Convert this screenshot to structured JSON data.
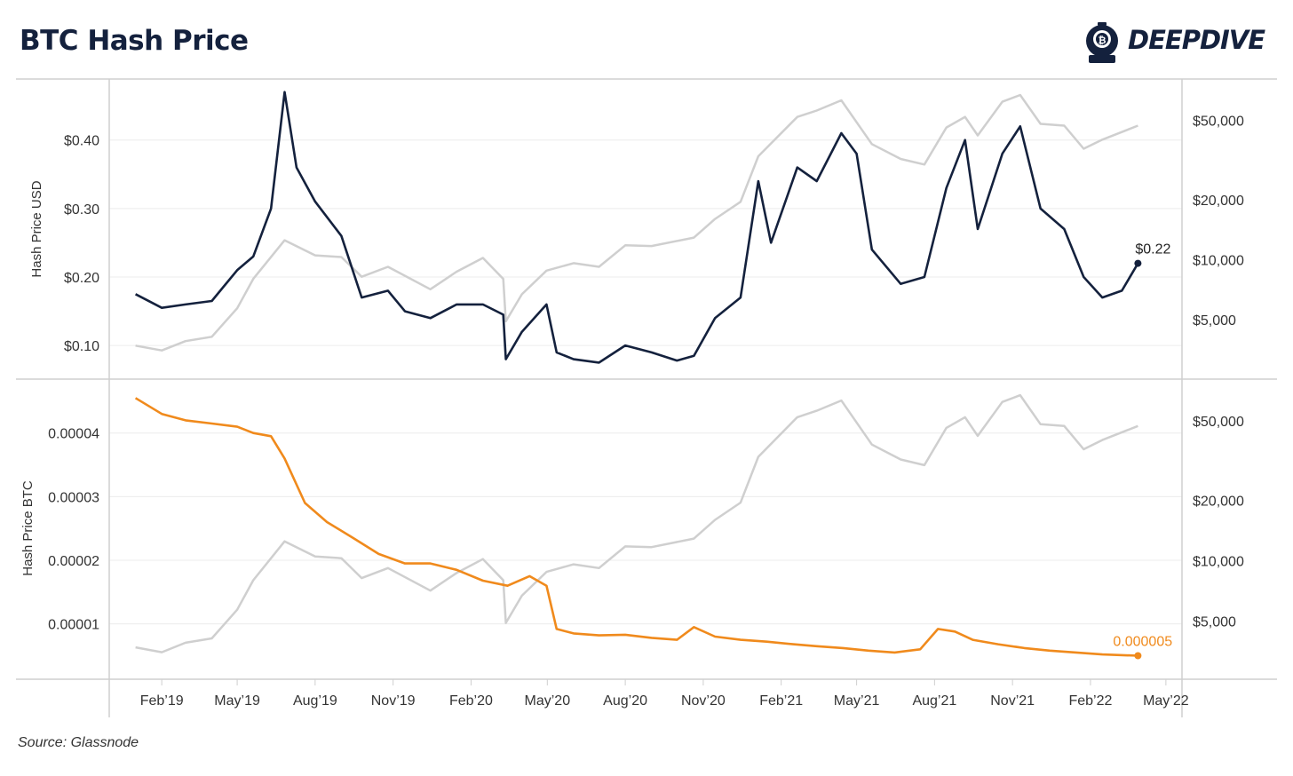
{
  "title": "BTC Hash Price",
  "logo": {
    "text": "DEEPDIVE",
    "icon": "diving-helmet-icon",
    "color": "#14213d"
  },
  "source": "Source: Glassnode",
  "colors": {
    "usd": "#14213d",
    "btc": "#f08a1c",
    "btc_price": "#cfcfcf",
    "grid": "#ececec",
    "axis": "#cfcfcf"
  },
  "chart_data": [
    {
      "type": "line",
      "ylabel": "Hash Price USD",
      "y_ticks": [
        "$0.10",
        "$0.20",
        "$0.30",
        "$0.40"
      ],
      "y_tick_values": [
        0.1,
        0.2,
        0.3,
        0.4
      ],
      "ylim": [
        0.06,
        0.48
      ],
      "y2_scale": "log",
      "y2_ticks": [
        "$5,000",
        "$10,000",
        "$20,000",
        "$50,000"
      ],
      "y2_tick_values": [
        5000,
        10000,
        20000,
        50000
      ],
      "y2lim": [
        2700,
        75000
      ],
      "end_label": "$0.22",
      "series": [
        {
          "name": "Hash Price USD",
          "axis": "left",
          "x": [
            "2019-01-01",
            "2019-02-01",
            "2019-03-01",
            "2019-04-01",
            "2019-05-01",
            "2019-05-20",
            "2019-06-10",
            "2019-06-26",
            "2019-07-10",
            "2019-08-01",
            "2019-09-01",
            "2019-09-25",
            "2019-10-26",
            "2019-11-15",
            "2019-12-15",
            "2020-01-15",
            "2020-02-15",
            "2020-03-10",
            "2020-03-13",
            "2020-04-01",
            "2020-04-30",
            "2020-05-12",
            "2020-06-01",
            "2020-07-01",
            "2020-08-01",
            "2020-09-01",
            "2020-10-01",
            "2020-10-21",
            "2020-11-15",
            "2020-12-15",
            "2021-01-05",
            "2021-01-20",
            "2021-02-20",
            "2021-03-15",
            "2021-04-13",
            "2021-05-01",
            "2021-05-19",
            "2021-06-22",
            "2021-07-20",
            "2021-08-15",
            "2021-09-06",
            "2021-09-21",
            "2021-10-20",
            "2021-11-10",
            "2021-12-04",
            "2022-01-01",
            "2022-01-24",
            "2022-02-15",
            "2022-03-10",
            "2022-03-29"
          ],
          "values": [
            0.175,
            0.155,
            0.16,
            0.165,
            0.21,
            0.23,
            0.3,
            0.47,
            0.36,
            0.31,
            0.26,
            0.17,
            0.18,
            0.15,
            0.14,
            0.16,
            0.16,
            0.145,
            0.08,
            0.12,
            0.16,
            0.09,
            0.08,
            0.075,
            0.1,
            0.09,
            0.078,
            0.085,
            0.14,
            0.17,
            0.34,
            0.25,
            0.36,
            0.34,
            0.41,
            0.38,
            0.24,
            0.19,
            0.2,
            0.33,
            0.4,
            0.27,
            0.38,
            0.42,
            0.3,
            0.27,
            0.2,
            0.17,
            0.18,
            0.22
          ]
        },
        {
          "name": "BTC Price",
          "axis": "right",
          "x": [
            "2019-01-01",
            "2019-02-01",
            "2019-03-01",
            "2019-04-01",
            "2019-05-01",
            "2019-05-20",
            "2019-06-26",
            "2019-08-01",
            "2019-09-01",
            "2019-09-25",
            "2019-10-26",
            "2019-12-15",
            "2020-01-15",
            "2020-02-15",
            "2020-03-10",
            "2020-03-13",
            "2020-04-01",
            "2020-04-30",
            "2020-06-01",
            "2020-07-01",
            "2020-08-01",
            "2020-09-01",
            "2020-10-21",
            "2020-11-15",
            "2020-12-15",
            "2021-01-05",
            "2021-02-20",
            "2021-03-15",
            "2021-04-13",
            "2021-05-19",
            "2021-06-22",
            "2021-07-20",
            "2021-08-15",
            "2021-09-06",
            "2021-09-21",
            "2021-10-20",
            "2021-11-10",
            "2021-12-04",
            "2022-01-01",
            "2022-01-24",
            "2022-02-15",
            "2022-03-29"
          ],
          "values": [
            3700,
            3500,
            3900,
            4100,
            5700,
            8000,
            12500,
            10500,
            10300,
            8200,
            9200,
            7100,
            8700,
            10200,
            8000,
            4900,
            6700,
            8800,
            9600,
            9200,
            11800,
            11700,
            12900,
            16000,
            19500,
            33000,
            52000,
            56000,
            63000,
            38000,
            32000,
            30000,
            46000,
            52000,
            42000,
            62000,
            67000,
            48000,
            47000,
            36000,
            40000,
            47000
          ]
        }
      ]
    },
    {
      "type": "line",
      "ylabel": "Hash Price BTC",
      "y_ticks": [
        "0.00001",
        "0.00002",
        "0.00003",
        "0.00004"
      ],
      "y_tick_values": [
        1e-05,
        2e-05,
        3e-05,
        4e-05
      ],
      "ylim": [
        2e-06,
        4.75e-05
      ],
      "y2_scale": "log",
      "y2_ticks": [
        "$5,000",
        "$10,000",
        "$20,000",
        "$50,000"
      ],
      "y2_tick_values": [
        5000,
        10000,
        20000,
        50000
      ],
      "y2lim": [
        2700,
        75000
      ],
      "end_label": "0.000005",
      "x_ticks": [
        "Feb’19",
        "May’19",
        "Aug’19",
        "Nov’19",
        "Feb’20",
        "May’20",
        "Aug’20",
        "Nov’20",
        "Feb’21",
        "May’21",
        "Aug’21",
        "Nov’21",
        "Feb’22",
        "May’22"
      ],
      "x_tick_dates": [
        "2019-02-01",
        "2019-05-01",
        "2019-08-01",
        "2019-11-01",
        "2020-02-01",
        "2020-05-01",
        "2020-08-01",
        "2020-11-01",
        "2021-02-01",
        "2021-05-01",
        "2021-08-01",
        "2021-11-01",
        "2022-02-01",
        "2022-05-01"
      ],
      "series": [
        {
          "name": "Hash Price BTC",
          "axis": "left",
          "x": [
            "2019-01-01",
            "2019-02-01",
            "2019-03-01",
            "2019-04-01",
            "2019-05-01",
            "2019-05-20",
            "2019-06-10",
            "2019-06-26",
            "2019-07-20",
            "2019-08-15",
            "2019-09-15",
            "2019-10-15",
            "2019-11-15",
            "2019-12-15",
            "2020-01-15",
            "2020-02-15",
            "2020-03-15",
            "2020-04-10",
            "2020-04-30",
            "2020-05-12",
            "2020-06-01",
            "2020-07-01",
            "2020-08-01",
            "2020-09-01",
            "2020-10-01",
            "2020-10-21",
            "2020-11-15",
            "2020-12-15",
            "2021-01-15",
            "2021-02-15",
            "2021-03-15",
            "2021-04-15",
            "2021-05-15",
            "2021-06-15",
            "2021-07-15",
            "2021-08-05",
            "2021-08-25",
            "2021-09-15",
            "2021-10-15",
            "2021-11-15",
            "2021-12-15",
            "2022-01-15",
            "2022-02-15",
            "2022-03-29"
          ],
          "values": [
            4.55e-05,
            4.3e-05,
            4.2e-05,
            4.15e-05,
            4.1e-05,
            4e-05,
            3.95e-05,
            3.6e-05,
            2.9e-05,
            2.6e-05,
            2.35e-05,
            2.1e-05,
            1.95e-05,
            1.95e-05,
            1.85e-05,
            1.68e-05,
            1.6e-05,
            1.75e-05,
            1.6e-05,
            9.2e-06,
            8.5e-06,
            8.2e-06,
            8.3e-06,
            7.8e-06,
            7.5e-06,
            9.5e-06,
            8e-06,
            7.5e-06,
            7.2e-06,
            6.8e-06,
            6.5e-06,
            6.2e-06,
            5.8e-06,
            5.5e-06,
            6e-06,
            9.2e-06,
            8.8e-06,
            7.5e-06,
            6.8e-06,
            6.2e-06,
            5.8e-06,
            5.5e-06,
            5.2e-06,
            5e-06
          ]
        },
        {
          "name": "BTC Price",
          "axis": "right",
          "x": [
            "2019-01-01",
            "2019-02-01",
            "2019-03-01",
            "2019-04-01",
            "2019-05-01",
            "2019-05-20",
            "2019-06-26",
            "2019-08-01",
            "2019-09-01",
            "2019-09-25",
            "2019-10-26",
            "2019-12-15",
            "2020-01-15",
            "2020-02-15",
            "2020-03-10",
            "2020-03-13",
            "2020-04-01",
            "2020-04-30",
            "2020-06-01",
            "2020-07-01",
            "2020-08-01",
            "2020-09-01",
            "2020-10-21",
            "2020-11-15",
            "2020-12-15",
            "2021-01-05",
            "2021-02-20",
            "2021-03-15",
            "2021-04-13",
            "2021-05-19",
            "2021-06-22",
            "2021-07-20",
            "2021-08-15",
            "2021-09-06",
            "2021-09-21",
            "2021-10-20",
            "2021-11-10",
            "2021-12-04",
            "2022-01-01",
            "2022-01-24",
            "2022-02-15",
            "2022-03-29"
          ],
          "values": [
            3700,
            3500,
            3900,
            4100,
            5700,
            8000,
            12500,
            10500,
            10300,
            8200,
            9200,
            7100,
            8700,
            10200,
            8000,
            4900,
            6700,
            8800,
            9600,
            9200,
            11800,
            11700,
            12900,
            16000,
            19500,
            33000,
            52000,
            56000,
            63000,
            38000,
            32000,
            30000,
            46000,
            52000,
            42000,
            62000,
            67000,
            48000,
            47000,
            36000,
            40000,
            47000
          ]
        }
      ]
    }
  ]
}
